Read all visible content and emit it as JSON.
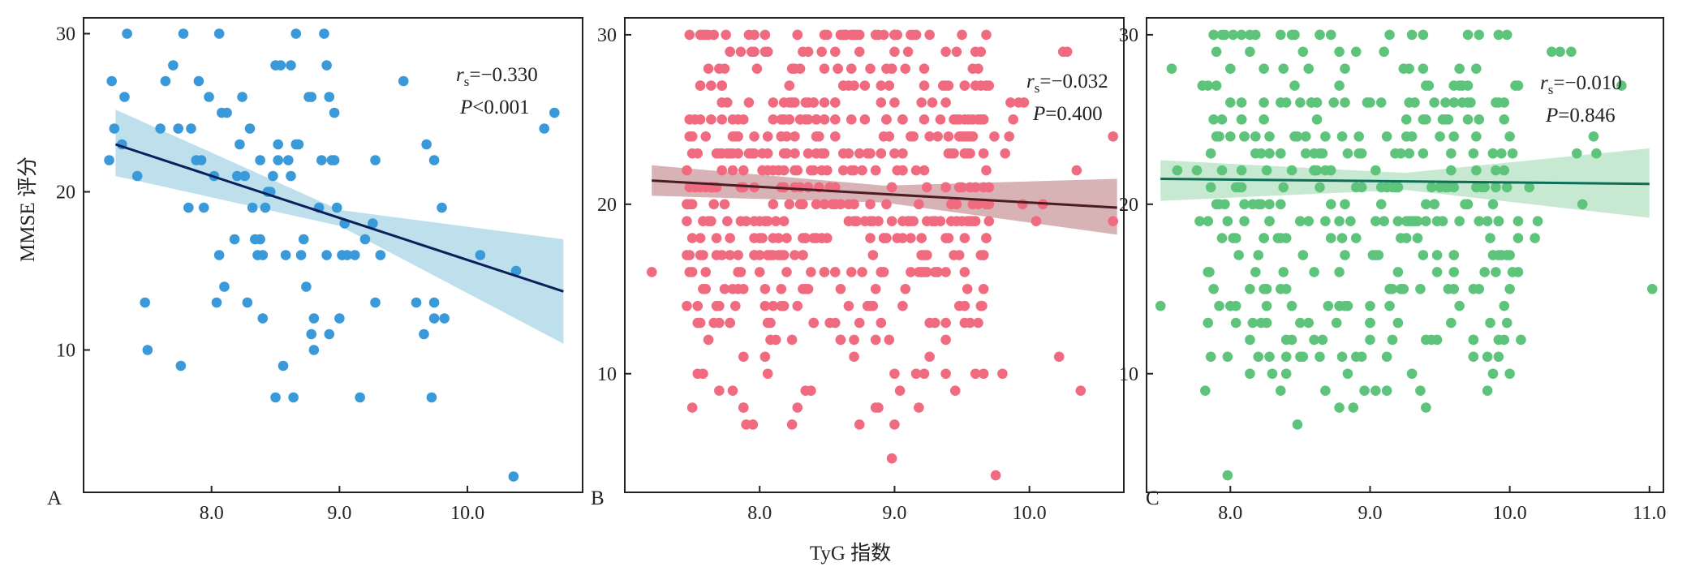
{
  "figure": {
    "ylabel": "MMSE 评分",
    "xlabel": "TyG 指数"
  },
  "chart_data": [
    {
      "type": "scatter",
      "panel": "A",
      "ylabel": "MMSE 评分",
      "xlim": [
        7.0,
        10.9
      ],
      "ylim": [
        1,
        31
      ],
      "xticks": [
        "8.0",
        "9.0",
        "10.0"
      ],
      "yticks": [
        "10",
        "20",
        "30"
      ],
      "point_color": "#3a9ad9",
      "line_color": "#0b1f5c",
      "band_color": "#a8d4e6",
      "stat_r": "r",
      "stat_r_sub": "s",
      "stat_r_val": "=−0.330",
      "stat_p": "P",
      "stat_p_val": "<0.001",
      "fit": {
        "x": [
          7.25,
          10.75
        ],
        "y": [
          23.0,
          13.7
        ],
        "band_lo": [
          21.0,
          10.4
        ],
        "band_hi": [
          25.2,
          17.0
        ]
      },
      "points": [
        [
          7.2,
          22
        ],
        [
          7.22,
          27
        ],
        [
          7.24,
          24
        ],
        [
          7.3,
          23
        ],
        [
          7.34,
          30
        ],
        [
          7.32,
          26
        ],
        [
          7.42,
          21
        ],
        [
          7.48,
          13
        ],
        [
          7.5,
          10
        ],
        [
          7.6,
          24
        ],
        [
          7.64,
          27
        ],
        [
          7.7,
          28
        ],
        [
          7.74,
          24
        ],
        [
          7.76,
          9
        ],
        [
          7.78,
          30
        ],
        [
          7.82,
          19
        ],
        [
          7.84,
          24
        ],
        [
          7.88,
          22
        ],
        [
          7.9,
          27
        ],
        [
          7.92,
          22
        ],
        [
          7.94,
          19
        ],
        [
          7.98,
          26
        ],
        [
          8.02,
          21
        ],
        [
          8.04,
          13
        ],
        [
          8.06,
          16
        ],
        [
          8.06,
          30
        ],
        [
          8.08,
          25
        ],
        [
          8.1,
          14
        ],
        [
          8.12,
          25
        ],
        [
          8.18,
          17
        ],
        [
          8.2,
          21
        ],
        [
          8.22,
          23
        ],
        [
          8.24,
          26
        ],
        [
          8.26,
          21
        ],
        [
          8.28,
          13
        ],
        [
          8.3,
          24
        ],
        [
          8.32,
          19
        ],
        [
          8.34,
          17
        ],
        [
          8.36,
          16
        ],
        [
          8.38,
          17
        ],
        [
          8.38,
          22
        ],
        [
          8.4,
          12
        ],
        [
          8.4,
          16
        ],
        [
          8.42,
          19
        ],
        [
          8.44,
          20
        ],
        [
          8.46,
          20
        ],
        [
          8.48,
          21
        ],
        [
          8.5,
          28
        ],
        [
          8.5,
          7
        ],
        [
          8.52,
          22
        ],
        [
          8.52,
          23
        ],
        [
          8.54,
          28
        ],
        [
          8.56,
          9
        ],
        [
          8.58,
          16
        ],
        [
          8.6,
          22
        ],
        [
          8.62,
          28
        ],
        [
          8.62,
          21
        ],
        [
          8.64,
          7
        ],
        [
          8.66,
          30
        ],
        [
          8.66,
          23
        ],
        [
          8.68,
          23
        ],
        [
          8.7,
          16
        ],
        [
          8.72,
          17
        ],
        [
          8.74,
          14
        ],
        [
          8.76,
          26
        ],
        [
          8.78,
          26
        ],
        [
          8.78,
          11
        ],
        [
          8.8,
          12
        ],
        [
          8.8,
          10
        ],
        [
          8.84,
          19
        ],
        [
          8.86,
          22
        ],
        [
          8.88,
          30
        ],
        [
          8.9,
          28
        ],
        [
          8.9,
          16
        ],
        [
          8.92,
          26
        ],
        [
          8.92,
          11
        ],
        [
          8.94,
          22
        ],
        [
          8.96,
          25
        ],
        [
          8.96,
          22
        ],
        [
          8.98,
          19
        ],
        [
          9.0,
          12
        ],
        [
          9.02,
          16
        ],
        [
          9.04,
          18
        ],
        [
          9.06,
          16
        ],
        [
          9.12,
          16
        ],
        [
          9.16,
          7
        ],
        [
          9.2,
          17
        ],
        [
          9.26,
          18
        ],
        [
          9.28,
          22
        ],
        [
          9.28,
          13
        ],
        [
          9.32,
          16
        ],
        [
          9.5,
          27
        ],
        [
          9.6,
          13
        ],
        [
          9.66,
          11
        ],
        [
          9.68,
          23
        ],
        [
          9.72,
          7
        ],
        [
          9.74,
          22
        ],
        [
          9.74,
          13
        ],
        [
          9.74,
          12
        ],
        [
          9.8,
          19
        ],
        [
          9.82,
          12
        ],
        [
          10.1,
          16
        ],
        [
          10.36,
          2
        ],
        [
          10.38,
          15
        ],
        [
          10.6,
          24
        ],
        [
          10.68,
          25
        ]
      ]
    },
    {
      "type": "scatter",
      "panel": "B",
      "xlim": [
        7.0,
        10.7
      ],
      "ylim": [
        3,
        31
      ],
      "xticks": [
        "8.0",
        "9.0",
        "10.0"
      ],
      "yticks": [
        "10",
        "20",
        "30"
      ],
      "point_color": "#f06b80",
      "line_color": "#4a1c24",
      "band_color": "#c99a9c",
      "stat_r": "r",
      "stat_r_sub": "s",
      "stat_r_val": "=−0.032",
      "stat_p": "P",
      "stat_p_val": "=0.400",
      "fit": {
        "x": [
          7.2,
          10.65
        ],
        "y": [
          21.4,
          19.8
        ],
        "band_lo": [
          20.5,
          18.2
        ],
        "band_hi": [
          22.3,
          21.5
        ]
      },
      "points": [
        [
          7.2,
          16
        ],
        [
          7.62,
          12
        ],
        [
          7.7,
          13
        ],
        [
          7.75,
          30
        ],
        [
          7.78,
          29
        ],
        [
          7.9,
          7
        ],
        [
          7.95,
          7
        ],
        [
          8.24,
          7
        ],
        [
          8.72,
          30
        ],
        [
          8.74,
          7
        ],
        [
          9.0,
          7
        ],
        [
          8.98,
          5
        ],
        [
          9.26,
          11
        ],
        [
          9.32,
          16
        ],
        [
          9.42,
          19
        ],
        [
          9.45,
          9
        ],
        [
          9.5,
          21
        ],
        [
          9.58,
          19
        ],
        [
          9.65,
          14
        ],
        [
          9.7,
          19
        ],
        [
          9.74,
          24
        ],
        [
          9.8,
          10
        ],
        [
          9.82,
          23
        ],
        [
          9.85,
          24
        ],
        [
          9.88,
          25
        ],
        [
          9.92,
          26
        ],
        [
          9.95,
          20
        ],
        [
          10.05,
          19
        ],
        [
          10.1,
          20
        ],
        [
          10.22,
          11
        ],
        [
          10.25,
          29
        ],
        [
          10.28,
          29
        ],
        [
          10.35,
          22
        ],
        [
          10.38,
          9
        ],
        [
          10.62,
          24
        ],
        [
          10.62,
          19
        ],
        [
          9.96,
          26
        ],
        [
          9.86,
          26
        ],
        [
          9.75,
          4
        ],
        [
          9.6,
          21
        ],
        [
          9.55,
          25
        ],
        [
          9.48,
          17
        ],
        [
          9.38,
          18
        ]
      ]
    },
    {
      "type": "scatter",
      "panel": "C",
      "xlim": [
        7.4,
        11.1
      ],
      "ylim": [
        3,
        31
      ],
      "xticks": [
        "8.0",
        "9.0",
        "10.0",
        "11.0"
      ],
      "yticks": [
        "10",
        "20",
        "30"
      ],
      "point_color": "#5ec47b",
      "line_color": "#0c6e56",
      "band_color": "#b6e2c2",
      "stat_r": "r",
      "stat_r_sub": "s",
      "stat_r_val": "=−0.010",
      "stat_p": "P",
      "stat_p_val": "=0.846",
      "fit": {
        "x": [
          7.5,
          11.0
        ],
        "y": [
          21.5,
          21.2
        ],
        "band_lo": [
          20.2,
          19.2
        ],
        "band_hi": [
          22.6,
          23.3
        ]
      },
      "points": [
        [
          7.5,
          14
        ],
        [
          7.58,
          28
        ],
        [
          7.62,
          22
        ],
        [
          7.76,
          22
        ],
        [
          7.78,
          19
        ],
        [
          7.8,
          27
        ],
        [
          7.84,
          27
        ],
        [
          7.85,
          16
        ],
        [
          7.9,
          29
        ],
        [
          7.92,
          14
        ],
        [
          7.96,
          30
        ],
        [
          7.98,
          4
        ],
        [
          8.0,
          24
        ],
        [
          8.04,
          21
        ],
        [
          8.08,
          25
        ],
        [
          8.1,
          20
        ],
        [
          8.16,
          13
        ],
        [
          8.2,
          17
        ],
        [
          8.24,
          18
        ],
        [
          8.28,
          11
        ],
        [
          8.3,
          10
        ],
        [
          8.36,
          15
        ],
        [
          8.4,
          12
        ],
        [
          8.44,
          14
        ],
        [
          8.48,
          7
        ],
        [
          8.52,
          29
        ],
        [
          8.56,
          13
        ],
        [
          8.6,
          12
        ],
        [
          8.64,
          11
        ],
        [
          8.68,
          9
        ],
        [
          8.76,
          13
        ],
        [
          8.8,
          11
        ],
        [
          8.84,
          10
        ],
        [
          8.88,
          8
        ],
        [
          8.96,
          9
        ],
        [
          9.0,
          13
        ],
        [
          9.04,
          9
        ],
        [
          9.08,
          26
        ],
        [
          9.12,
          24
        ],
        [
          9.16,
          15
        ],
        [
          9.2,
          13
        ],
        [
          9.24,
          28
        ],
        [
          9.3,
          24
        ],
        [
          9.36,
          9
        ],
        [
          9.4,
          8
        ],
        [
          9.44,
          12
        ],
        [
          9.48,
          16
        ],
        [
          9.56,
          15
        ],
        [
          9.6,
          21
        ],
        [
          9.64,
          14
        ],
        [
          9.7,
          30
        ],
        [
          9.78,
          15
        ],
        [
          9.84,
          9
        ],
        [
          9.88,
          20
        ],
        [
          9.92,
          19
        ],
        [
          9.96,
          25
        ],
        [
          10.0,
          10
        ],
        [
          10.02,
          16
        ],
        [
          10.06,
          16
        ],
        [
          10.08,
          12
        ],
        [
          10.14,
          21
        ],
        [
          10.18,
          18
        ],
        [
          10.2,
          19
        ],
        [
          10.3,
          29
        ],
        [
          10.36,
          29
        ],
        [
          10.44,
          29
        ],
        [
          10.48,
          23
        ],
        [
          10.52,
          20
        ],
        [
          10.6,
          24
        ],
        [
          10.62,
          23
        ],
        [
          10.8,
          27
        ],
        [
          11.02,
          15
        ]
      ]
    }
  ]
}
